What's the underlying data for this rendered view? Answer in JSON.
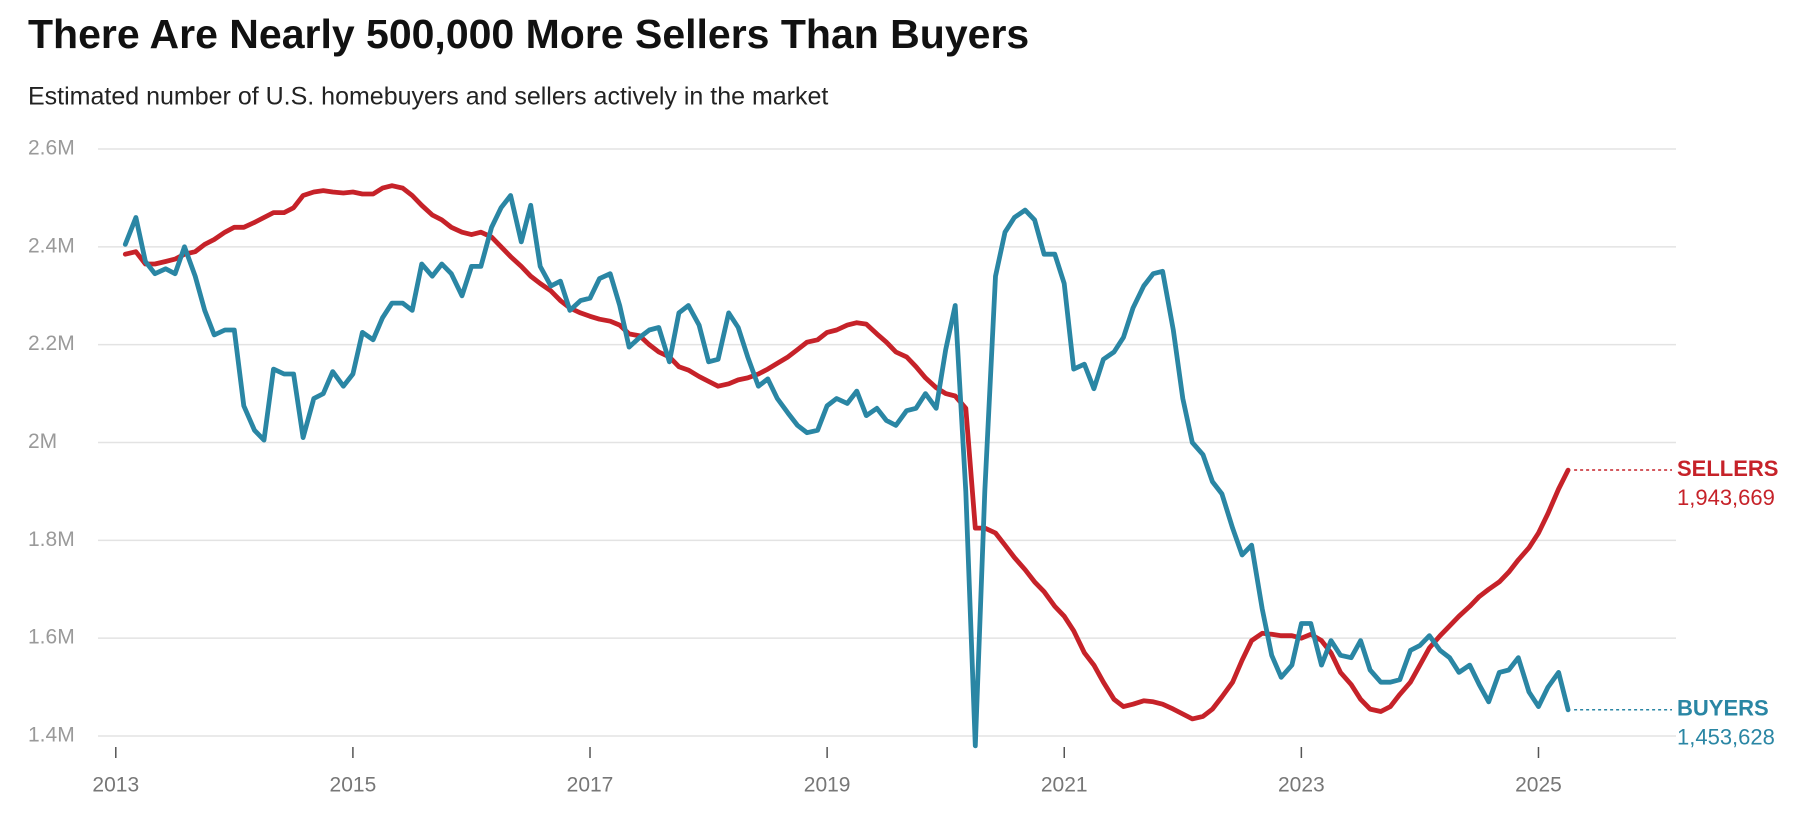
{
  "chart_data": {
    "type": "line",
    "title": "There Are Nearly 500,000 More Sellers Than Buyers",
    "subtitle": "Estimated number of U.S. homebuyers and sellers actively in the market",
    "x": [
      2013.08,
      2013.17,
      2013.25,
      2013.33,
      2013.42,
      2013.5,
      2013.58,
      2013.67,
      2013.75,
      2013.83,
      2013.92,
      2014,
      2014.08,
      2014.17,
      2014.25,
      2014.33,
      2014.42,
      2014.5,
      2014.58,
      2014.67,
      2014.75,
      2014.83,
      2014.92,
      2015,
      2015.08,
      2015.17,
      2015.25,
      2015.33,
      2015.42,
      2015.5,
      2015.58,
      2015.67,
      2015.75,
      2015.83,
      2015.92,
      2016,
      2016.08,
      2016.17,
      2016.25,
      2016.33,
      2016.42,
      2016.5,
      2016.58,
      2016.67,
      2016.75,
      2016.83,
      2016.92,
      2017,
      2017.08,
      2017.17,
      2017.25,
      2017.33,
      2017.42,
      2017.5,
      2017.58,
      2017.67,
      2017.75,
      2017.83,
      2017.92,
      2018,
      2018.08,
      2018.17,
      2018.25,
      2018.33,
      2018.42,
      2018.5,
      2018.58,
      2018.67,
      2018.75,
      2018.83,
      2018.92,
      2019,
      2019.08,
      2019.17,
      2019.25,
      2019.33,
      2019.42,
      2019.5,
      2019.58,
      2019.67,
      2019.75,
      2019.83,
      2019.92,
      2020,
      2020.08,
      2020.17,
      2020.25,
      2020.33,
      2020.42,
      2020.5,
      2020.58,
      2020.67,
      2020.75,
      2020.83,
      2020.92,
      2021,
      2021.08,
      2021.17,
      2021.25,
      2021.33,
      2021.42,
      2021.5,
      2021.58,
      2021.67,
      2021.75,
      2021.83,
      2021.92,
      2022,
      2022.08,
      2022.17,
      2022.25,
      2022.33,
      2022.42,
      2022.5,
      2022.58,
      2022.67,
      2022.75,
      2022.83,
      2022.92,
      2023,
      2023.08,
      2023.17,
      2023.25,
      2023.33,
      2023.42,
      2023.5,
      2023.58,
      2023.67,
      2023.75,
      2023.83,
      2023.92,
      2024,
      2024.08,
      2024.17,
      2024.25,
      2024.33,
      2024.42,
      2024.5,
      2024.58,
      2024.67,
      2024.75,
      2024.83,
      2024.92,
      2025,
      2025.08,
      2025.17,
      2025.25
    ],
    "series": [
      {
        "name": "SELLERS",
        "color": "#c62229",
        "end_label": "1,943,669",
        "values": [
          2.385,
          2.39,
          2.365,
          2.365,
          2.37,
          2.375,
          2.385,
          2.39,
          2.405,
          2.415,
          2.43,
          2.44,
          2.44,
          2.45,
          2.46,
          2.47,
          2.47,
          2.48,
          2.505,
          2.512,
          2.515,
          2.512,
          2.51,
          2.512,
          2.508,
          2.508,
          2.52,
          2.525,
          2.52,
          2.505,
          2.485,
          2.465,
          2.455,
          2.44,
          2.43,
          2.425,
          2.43,
          2.42,
          2.4,
          2.38,
          2.36,
          2.34,
          2.325,
          2.31,
          2.29,
          2.275,
          2.265,
          2.258,
          2.252,
          2.248,
          2.24,
          2.222,
          2.218,
          2.2,
          2.185,
          2.175,
          2.155,
          2.148,
          2.135,
          2.125,
          2.115,
          2.12,
          2.128,
          2.132,
          2.14,
          2.15,
          2.162,
          2.175,
          2.19,
          2.205,
          2.21,
          2.225,
          2.23,
          2.24,
          2.245,
          2.242,
          2.222,
          2.205,
          2.185,
          2.175,
          2.155,
          2.132,
          2.112,
          2.1,
          2.095,
          2.07,
          1.825,
          1.825,
          1.815,
          1.79,
          1.765,
          1.74,
          1.715,
          1.695,
          1.665,
          1.645,
          1.615,
          1.57,
          1.545,
          1.51,
          1.475,
          1.46,
          1.465,
          1.472,
          1.47,
          1.465,
          1.455,
          1.445,
          1.435,
          1.44,
          1.455,
          1.48,
          1.51,
          1.555,
          1.595,
          1.61,
          1.608,
          1.605,
          1.605,
          1.6,
          1.608,
          1.595,
          1.57,
          1.53,
          1.505,
          1.475,
          1.455,
          1.45,
          1.46,
          1.485,
          1.51,
          1.545,
          1.58,
          1.605,
          1.625,
          1.645,
          1.665,
          1.685,
          1.7,
          1.715,
          1.735,
          1.76,
          1.785,
          1.815,
          1.855,
          1.905,
          1.943669
        ]
      },
      {
        "name": "BUYERS",
        "color": "#2a86a4",
        "end_label": "1,453,628",
        "values": [
          2.405,
          2.46,
          2.37,
          2.345,
          2.355,
          2.345,
          2.4,
          2.34,
          2.27,
          2.22,
          2.23,
          2.23,
          2.075,
          2.025,
          2.005,
          2.15,
          2.14,
          2.14,
          2.01,
          2.09,
          2.1,
          2.145,
          2.115,
          2.14,
          2.225,
          2.21,
          2.255,
          2.285,
          2.285,
          2.27,
          2.365,
          2.34,
          2.365,
          2.345,
          2.3,
          2.36,
          2.36,
          2.44,
          2.48,
          2.505,
          2.41,
          2.485,
          2.36,
          2.32,
          2.33,
          2.27,
          2.29,
          2.295,
          2.335,
          2.345,
          2.28,
          2.195,
          2.215,
          2.23,
          2.235,
          2.165,
          2.265,
          2.28,
          2.24,
          2.165,
          2.17,
          2.265,
          2.235,
          2.175,
          2.115,
          2.13,
          2.09,
          2.06,
          2.035,
          2.02,
          2.025,
          2.075,
          2.09,
          2.08,
          2.105,
          2.055,
          2.07,
          2.045,
          2.035,
          2.065,
          2.07,
          2.1,
          2.07,
          2.19,
          2.28,
          1.9,
          1.38,
          1.9,
          2.34,
          2.43,
          2.46,
          2.475,
          2.455,
          2.385,
          2.385,
          2.325,
          2.15,
          2.16,
          2.11,
          2.17,
          2.185,
          2.215,
          2.275,
          2.32,
          2.345,
          2.35,
          2.23,
          2.09,
          2.0,
          1.975,
          1.92,
          1.895,
          1.825,
          1.77,
          1.79,
          1.66,
          1.565,
          1.52,
          1.545,
          1.63,
          1.63,
          1.545,
          1.595,
          1.565,
          1.56,
          1.595,
          1.535,
          1.51,
          1.51,
          1.515,
          1.575,
          1.585,
          1.605,
          1.575,
          1.56,
          1.53,
          1.545,
          1.505,
          1.47,
          1.53,
          1.535,
          1.56,
          1.49,
          1.46,
          1.5,
          1.53,
          1.453628
        ]
      }
    ],
    "xlim": [
      2012.85,
      2026.16
    ],
    "xticks": [
      2013,
      2015,
      2017,
      2019,
      2021,
      2023,
      2025
    ],
    "ylim": [
      1.4,
      2.6
    ],
    "yticks": [
      {
        "value": 1.4,
        "label": "1.4M"
      },
      {
        "value": 1.6,
        "label": "1.6M"
      },
      {
        "value": 1.8,
        "label": "1.8M"
      },
      {
        "value": 2,
        "label": "2M"
      },
      {
        "value": 2.2,
        "label": "2.2M"
      },
      {
        "value": 2.4,
        "label": "2.4M"
      },
      {
        "value": 2.6,
        "label": "2.6M"
      }
    ],
    "grid": true
  }
}
